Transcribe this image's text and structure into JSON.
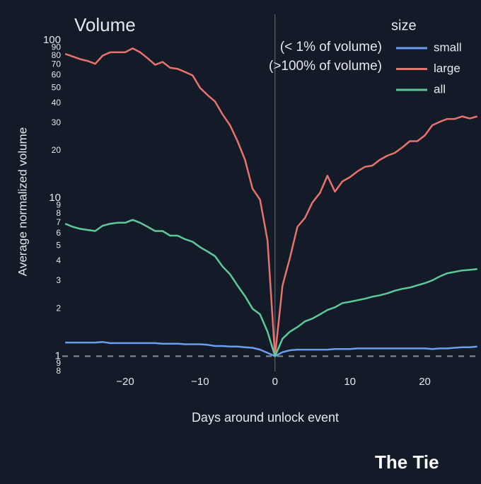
{
  "chart_data": {
    "type": "line",
    "title": "Volume",
    "xlabel": "Days around unlock event",
    "ylabel": "Average normalized volume",
    "legend_title": "size",
    "annotations": [
      "(< 1% of volume)",
      "(>100% of volume)"
    ],
    "brand": "The Tie",
    "log_y": true,
    "grid": false,
    "legend": "upper right",
    "hline": 1,
    "vline": 0,
    "background": "#131a28",
    "xlim": [
      -28.4,
      27.5
    ],
    "ylim": [
      0.8,
      100
    ],
    "xticks": [
      {
        "value": -20,
        "label": "−20"
      },
      {
        "value": -10,
        "label": "−10"
      },
      0,
      10,
      20
    ],
    "yticks": [
      {
        "value": 0.8,
        "label": "8"
      },
      {
        "value": 0.9,
        "label": "9"
      },
      1,
      2,
      3,
      4,
      5,
      6,
      7,
      8,
      9,
      10,
      20,
      30,
      40,
      50,
      60,
      70,
      80,
      90,
      100
    ],
    "x": [
      -28,
      -27,
      -26,
      -25,
      -24,
      -23,
      -22,
      -21,
      -20,
      -19,
      -18,
      -17,
      -16,
      -15,
      -14,
      -13,
      -12,
      -11,
      -10,
      -9,
      -8,
      -7,
      -6,
      -5,
      -4,
      -3,
      -2,
      -1,
      0,
      1,
      2,
      3,
      4,
      5,
      6,
      7,
      8,
      9,
      10,
      11,
      12,
      13,
      14,
      15,
      16,
      17,
      18,
      19,
      20,
      21,
      22,
      23,
      24,
      25,
      26,
      27
    ],
    "series": [
      {
        "name": "small",
        "color": "#6b9ef0",
        "values": [
          1.22,
          1.22,
          1.22,
          1.22,
          1.22,
          1.23,
          1.21,
          1.21,
          1.21,
          1.21,
          1.21,
          1.21,
          1.21,
          1.2,
          1.2,
          1.2,
          1.19,
          1.19,
          1.19,
          1.18,
          1.16,
          1.16,
          1.15,
          1.15,
          1.14,
          1.13,
          1.1,
          1.05,
          1,
          1.06,
          1.09,
          1.1,
          1.1,
          1.1,
          1.1,
          1.1,
          1.11,
          1.11,
          1.11,
          1.12,
          1.12,
          1.12,
          1.12,
          1.12,
          1.12,
          1.12,
          1.12,
          1.12,
          1.12,
          1.11,
          1.12,
          1.12,
          1.13,
          1.14,
          1.14,
          1.15
        ]
      },
      {
        "name": "large",
        "color": "#e8736c",
        "values": [
          82,
          79,
          76,
          74,
          71,
          80,
          84,
          84,
          84,
          89,
          84,
          77,
          70,
          73,
          67,
          66,
          63,
          60,
          50,
          45,
          41,
          34,
          29,
          23,
          17.5,
          11.5,
          9.8,
          5.4,
          1,
          2.8,
          4.2,
          6.6,
          7.5,
          9.4,
          10.8,
          13.9,
          11,
          12.8,
          13.6,
          14.8,
          15.8,
          16.1,
          17.5,
          18.6,
          19.4,
          21,
          23,
          23,
          25,
          29,
          30.5,
          31.8,
          31.8,
          33,
          32,
          33
        ]
      },
      {
        "name": "all",
        "color": "#5ec998",
        "values": [
          6.9,
          6.6,
          6.4,
          6.3,
          6.2,
          6.7,
          6.9,
          7.0,
          7.0,
          7.3,
          7.0,
          6.6,
          6.2,
          6.2,
          5.8,
          5.8,
          5.5,
          5.3,
          4.9,
          4.6,
          4.3,
          3.7,
          3.3,
          2.8,
          2.4,
          2.0,
          1.84,
          1.43,
          1,
          1.29,
          1.43,
          1.53,
          1.66,
          1.73,
          1.84,
          1.96,
          2.04,
          2.17,
          2.21,
          2.26,
          2.31,
          2.38,
          2.43,
          2.5,
          2.6,
          2.67,
          2.72,
          2.81,
          2.9,
          3.02,
          3.2,
          3.35,
          3.42,
          3.49,
          3.52,
          3.56
        ]
      }
    ]
  }
}
